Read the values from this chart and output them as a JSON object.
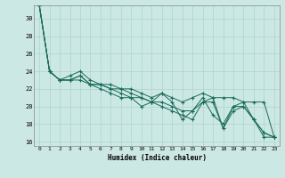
{
  "xlabel": "Humidex (Indice chaleur)",
  "ylabel": "",
  "background_color": "#cce8e4",
  "grid_color": "#aad4cc",
  "line_color": "#1a6b5a",
  "xlim": [
    -0.5,
    23.5
  ],
  "ylim": [
    15.5,
    31.5
  ],
  "yticks": [
    16,
    18,
    20,
    22,
    24,
    26,
    28,
    30
  ],
  "xticks": [
    0,
    1,
    2,
    3,
    4,
    5,
    6,
    7,
    8,
    9,
    10,
    11,
    12,
    13,
    14,
    15,
    16,
    17,
    18,
    19,
    20,
    21,
    22,
    23
  ],
  "xtick_labels": [
    "0",
    "1",
    "2",
    "3",
    "4",
    "5",
    "6",
    "7",
    "8",
    "9",
    "10",
    "11",
    "12",
    "13",
    "14",
    "15",
    "16",
    "17",
    "18",
    "19",
    "20",
    "21",
    "22",
    "23"
  ],
  "series": [
    [
      31.5,
      24.0,
      23.0,
      23.0,
      23.5,
      22.5,
      22.0,
      21.5,
      21.0,
      21.0,
      20.0,
      20.5,
      21.5,
      20.5,
      18.5,
      19.5,
      21.0,
      19.0,
      18.0,
      20.0,
      20.5,
      18.5,
      17.0,
      16.5
    ],
    [
      31.5,
      24.0,
      23.0,
      23.0,
      23.5,
      22.5,
      22.5,
      22.0,
      21.5,
      21.0,
      21.0,
      20.5,
      20.0,
      19.5,
      19.0,
      18.5,
      20.5,
      21.0,
      17.5,
      20.0,
      20.0,
      18.5,
      16.5,
      16.5
    ],
    [
      31.5,
      24.0,
      23.0,
      23.5,
      24.0,
      23.0,
      22.5,
      22.5,
      22.0,
      22.0,
      21.5,
      21.0,
      21.5,
      21.0,
      20.5,
      21.0,
      21.5,
      21.0,
      21.0,
      21.0,
      20.5,
      20.5,
      20.5,
      16.5
    ],
    [
      31.5,
      24.0,
      23.0,
      23.0,
      23.0,
      22.5,
      22.5,
      22.0,
      22.0,
      21.5,
      21.0,
      20.5,
      20.5,
      20.0,
      19.5,
      19.5,
      20.5,
      20.5,
      17.5,
      19.5,
      20.0,
      18.5,
      17.0,
      16.5
    ]
  ]
}
